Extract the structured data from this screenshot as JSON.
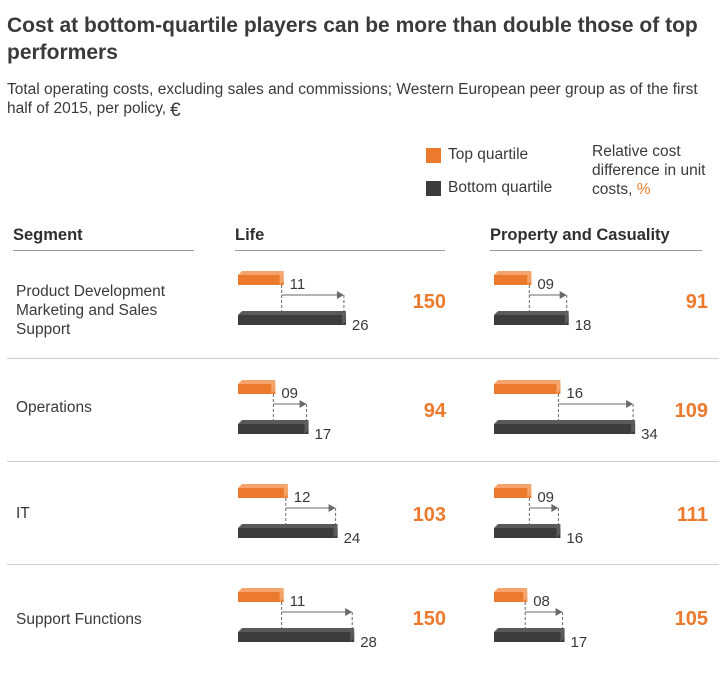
{
  "title": "Cost at bottom-quartile players can be more than double those of top performers",
  "subtitle": "Total operating costs, excluding sales and commissions; Western European peer group as of the first half of 2015, per policy,",
  "currency_symbol": "€",
  "legend": {
    "top_label": "Top quartile",
    "bottom_label": "Bottom quartile",
    "note_prefix": "Relative cost difference in unit costs,",
    "note_unit": "%",
    "colors": {
      "top": "#ec7a2d",
      "bottom": "#3c3c3c",
      "accent": "#ec7a2d"
    }
  },
  "headers": {
    "segment": "Segment",
    "life": "Life",
    "pc": "Property and Casuality"
  },
  "chart_data": {
    "type": "bar",
    "title": "Cost at bottom-quartile players can be more than double those of top performers",
    "categories": [
      "Product Development Marketing and Sales Support",
      "Operations",
      "IT",
      "Support Functions"
    ],
    "panels": [
      {
        "name": "Life",
        "series": [
          {
            "name": "Top quartile",
            "values": [
              11,
              9,
              12,
              11
            ],
            "labels": [
              "11",
              "09",
              "12",
              "11"
            ]
          },
          {
            "name": "Bottom quartile",
            "values": [
              26,
              17,
              24,
              28
            ],
            "labels": [
              "26",
              "17",
              "24",
              "28"
            ]
          }
        ],
        "relative_difference_pct": [
          150,
          94,
          103,
          150
        ]
      },
      {
        "name": "Property and Casuality",
        "series": [
          {
            "name": "Top quartile",
            "values": [
              9,
              16,
              9,
              8
            ],
            "labels": [
              "09",
              "16",
              "09",
              "08"
            ]
          },
          {
            "name": "Bottom quartile",
            "values": [
              18,
              34,
              16,
              17
            ],
            "labels": [
              "18",
              "34",
              "16",
              "17"
            ]
          }
        ],
        "relative_difference_pct": [
          91,
          109,
          111,
          105
        ]
      }
    ]
  },
  "rows": [
    {
      "label_lines": [
        "Product Development",
        "Marketing and Sales",
        "Support"
      ]
    },
    {
      "label_lines": [
        "Operations"
      ]
    },
    {
      "label_lines": [
        "IT"
      ]
    },
    {
      "label_lines": [
        "Support Functions"
      ]
    }
  ]
}
